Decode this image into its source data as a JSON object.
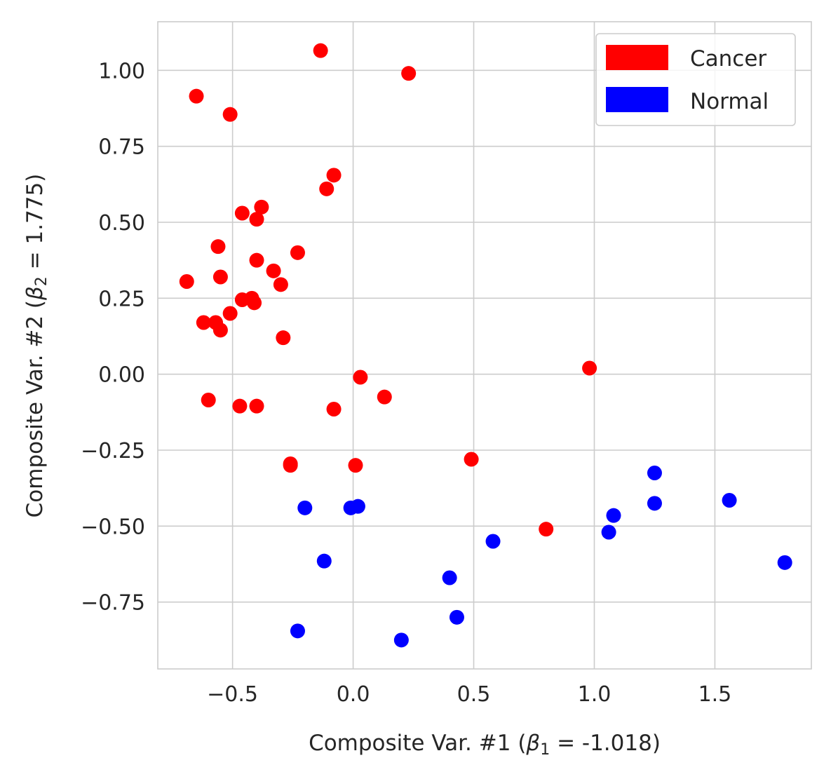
{
  "chart_data": {
    "type": "scatter",
    "title": "",
    "xlabel": {
      "prefix": "Composite Var. #1 (",
      "symbol": "β",
      "subscript": "1",
      "suffix": " = -1.018)"
    },
    "ylabel": {
      "prefix": "Composite Var. #2 (",
      "symbol": "β",
      "subscript": "2",
      "suffix": " = 1.775)"
    },
    "xlim": [
      -0.81,
      1.9
    ],
    "ylim": [
      -0.97,
      1.16
    ],
    "xticks": [
      -0.5,
      0.0,
      0.5,
      1.0,
      1.5
    ],
    "xtick_labels": [
      "−0.5",
      "0.0",
      "0.5",
      "1.0",
      "1.5"
    ],
    "yticks": [
      1.0,
      0.75,
      0.5,
      0.25,
      0.0,
      -0.25,
      -0.5,
      -0.75
    ],
    "ytick_labels": [
      "1.00",
      "0.75",
      "0.50",
      "0.25",
      "0.00",
      "−0.25",
      "−0.50",
      "−0.75"
    ],
    "grid": true,
    "legend_position": "top-right",
    "series": [
      {
        "name": "Cancer",
        "color": "#ff0000",
        "points": [
          [
            -0.65,
            0.915
          ],
          [
            -0.51,
            0.855
          ],
          [
            -0.135,
            1.065
          ],
          [
            0.23,
            0.99
          ],
          [
            -0.08,
            0.655
          ],
          [
            -0.11,
            0.61
          ],
          [
            -0.38,
            0.55
          ],
          [
            -0.46,
            0.53
          ],
          [
            -0.4,
            0.51
          ],
          [
            -0.56,
            0.42
          ],
          [
            -0.23,
            0.4
          ],
          [
            -0.4,
            0.375
          ],
          [
            -0.33,
            0.34
          ],
          [
            -0.69,
            0.305
          ],
          [
            -0.55,
            0.32
          ],
          [
            -0.3,
            0.295
          ],
          [
            -0.46,
            0.245
          ],
          [
            -0.42,
            0.25
          ],
          [
            -0.41,
            0.235
          ],
          [
            -0.51,
            0.2
          ],
          [
            -0.62,
            0.17
          ],
          [
            -0.57,
            0.17
          ],
          [
            -0.55,
            0.145
          ],
          [
            -0.29,
            0.12
          ],
          [
            0.03,
            -0.01
          ],
          [
            0.98,
            0.02
          ],
          [
            0.13,
            -0.075
          ],
          [
            -0.6,
            -0.085
          ],
          [
            -0.47,
            -0.105
          ],
          [
            -0.4,
            -0.105
          ],
          [
            -0.08,
            -0.115
          ],
          [
            0.49,
            -0.28
          ],
          [
            -0.26,
            -0.295
          ],
          [
            -0.26,
            -0.3
          ],
          [
            0.01,
            -0.3
          ],
          [
            0.8,
            -0.51
          ]
        ]
      },
      {
        "name": "Normal",
        "color": "#0000ff",
        "points": [
          [
            1.25,
            -0.325
          ],
          [
            1.56,
            -0.415
          ],
          [
            1.25,
            -0.425
          ],
          [
            -0.2,
            -0.44
          ],
          [
            -0.01,
            -0.44
          ],
          [
            0.02,
            -0.435
          ],
          [
            1.08,
            -0.465
          ],
          [
            1.06,
            -0.52
          ],
          [
            0.58,
            -0.55
          ],
          [
            1.79,
            -0.62
          ],
          [
            -0.12,
            -0.615
          ],
          [
            0.4,
            -0.67
          ],
          [
            0.43,
            -0.8
          ],
          [
            -0.23,
            -0.845
          ],
          [
            0.2,
            -0.875
          ]
        ]
      }
    ]
  }
}
